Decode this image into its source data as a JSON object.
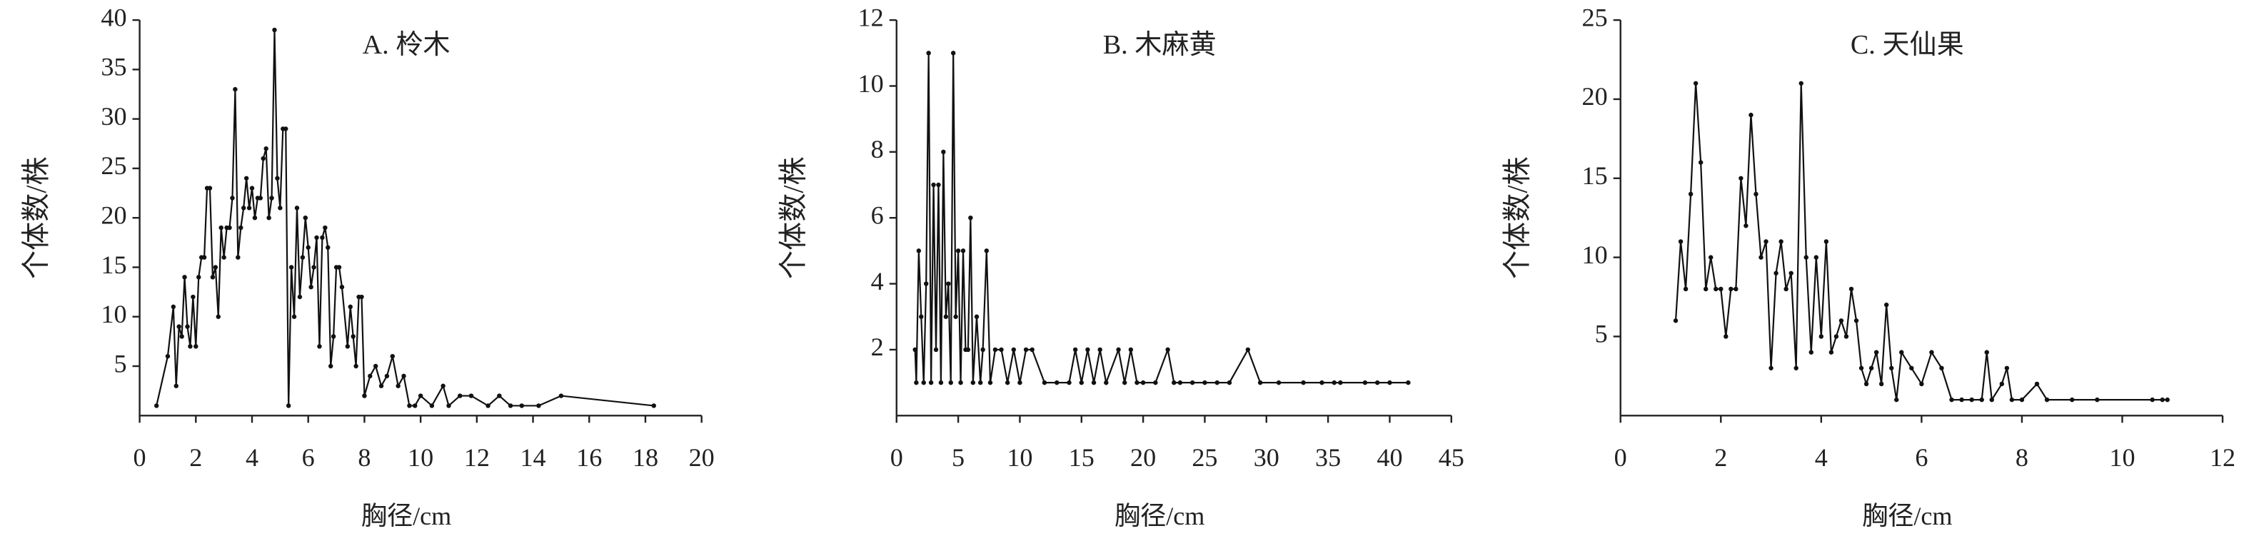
{
  "chart_data": [
    {
      "type": "line",
      "title": "A. 柃木",
      "x_label": "胸径/cm",
      "y_label": "个体数/株",
      "color": "#111111",
      "xlim": [
        0,
        20
      ],
      "ylim": [
        0,
        40
      ],
      "xticks": [
        0,
        2,
        4,
        6,
        8,
        10,
        12,
        14,
        16,
        18,
        20
      ],
      "yticks": [
        5,
        10,
        15,
        20,
        25,
        30,
        35,
        40
      ],
      "x": [
        0.6,
        1.0,
        1.2,
        1.3,
        1.4,
        1.5,
        1.6,
        1.7,
        1.8,
        1.9,
        2.0,
        2.1,
        2.2,
        2.3,
        2.4,
        2.5,
        2.6,
        2.7,
        2.8,
        2.9,
        3.0,
        3.1,
        3.2,
        3.3,
        3.4,
        3.5,
        3.6,
        3.7,
        3.8,
        3.9,
        4.0,
        4.1,
        4.2,
        4.3,
        4.4,
        4.5,
        4.6,
        4.7,
        4.8,
        4.9,
        5.0,
        5.1,
        5.2,
        5.3,
        5.4,
        5.5,
        5.6,
        5.7,
        5.8,
        5.9,
        6.0,
        6.1,
        6.2,
        6.3,
        6.4,
        6.5,
        6.6,
        6.7,
        6.8,
        6.9,
        7.0,
        7.1,
        7.2,
        7.4,
        7.5,
        7.6,
        7.7,
        7.8,
        7.9,
        8.0,
        8.2,
        8.4,
        8.6,
        8.8,
        9.0,
        9.2,
        9.4,
        9.6,
        9.8,
        10.0,
        10.4,
        10.8,
        11.0,
        11.4,
        11.8,
        12.4,
        12.8,
        13.2,
        13.6,
        14.2,
        15.0,
        18.3
      ],
      "values": [
        1,
        6,
        11,
        3,
        9,
        8,
        14,
        9,
        7,
        12,
        7,
        14,
        16,
        16,
        23,
        23,
        14,
        15,
        10,
        19,
        16,
        19,
        19,
        22,
        33,
        16,
        19,
        21,
        24,
        21,
        23,
        20,
        22,
        22,
        26,
        27,
        20,
        22,
        39,
        24,
        21,
        29,
        29,
        1,
        15,
        10,
        21,
        12,
        16,
        20,
        17,
        13,
        15,
        18,
        7,
        18,
        19,
        17,
        5,
        8,
        15,
        15,
        13,
        7,
        11,
        8,
        5,
        12,
        12,
        2,
        4,
        5,
        3,
        4,
        6,
        3,
        4,
        1,
        1,
        2,
        1,
        3,
        1,
        2,
        2,
        1,
        2,
        1,
        1,
        1,
        2,
        1
      ]
    },
    {
      "type": "line",
      "title": "B. 木麻黄",
      "x_label": "胸径/cm",
      "y_label": "个体数/株",
      "color": "#111111",
      "xlim": [
        0,
        45
      ],
      "ylim": [
        0,
        12
      ],
      "xticks": [
        0,
        5,
        10,
        15,
        20,
        25,
        30,
        35,
        40,
        45
      ],
      "yticks": [
        2,
        4,
        6,
        8,
        10,
        12
      ],
      "x": [
        1.5,
        1.6,
        1.8,
        2.0,
        2.2,
        2.4,
        2.6,
        2.8,
        3.0,
        3.2,
        3.4,
        3.6,
        3.8,
        4.0,
        4.2,
        4.4,
        4.6,
        4.8,
        5.0,
        5.2,
        5.4,
        5.6,
        5.8,
        6.0,
        6.2,
        6.5,
        6.8,
        7.0,
        7.3,
        7.6,
        8.0,
        8.5,
        9.0,
        9.5,
        10.0,
        10.5,
        11.0,
        12.0,
        13.0,
        14.0,
        14.5,
        15.0,
        15.5,
        16.0,
        16.5,
        17.0,
        18.0,
        18.5,
        19.0,
        19.5,
        20.0,
        21.0,
        22.0,
        22.5,
        23.0,
        24,
        25,
        26,
        27,
        28.5,
        29.5,
        31,
        33,
        34.5,
        35.5,
        36,
        38,
        39,
        40,
        41.5
      ],
      "values": [
        2,
        1,
        5,
        3,
        1,
        4,
        11,
        1,
        7,
        2,
        7,
        1,
        8,
        3,
        4,
        1,
        11,
        3,
        5,
        1,
        5,
        2,
        2,
        6,
        1,
        3,
        1,
        2,
        5,
        1,
        2,
        2,
        1,
        2,
        1,
        2,
        2,
        1,
        1,
        1,
        2,
        1,
        2,
        1,
        2,
        1,
        2,
        1,
        2,
        1,
        1,
        1,
        2,
        1,
        1,
        1,
        1,
        1,
        1,
        2,
        1,
        1,
        1,
        1,
        1,
        1,
        1,
        1,
        1,
        1
      ]
    },
    {
      "type": "line",
      "title": "C. 天仙果",
      "x_label": "胸径/cm",
      "y_label": "个体数/株",
      "color": "#111111",
      "xlim": [
        0,
        12
      ],
      "ylim": [
        0,
        25
      ],
      "xticks": [
        0,
        2,
        4,
        6,
        8,
        10,
        12
      ],
      "yticks": [
        5,
        10,
        15,
        20,
        25
      ],
      "x": [
        1.1,
        1.2,
        1.3,
        1.4,
        1.5,
        1.6,
        1.7,
        1.8,
        1.9,
        2.0,
        2.1,
        2.2,
        2.3,
        2.4,
        2.5,
        2.6,
        2.7,
        2.8,
        2.9,
        3.0,
        3.1,
        3.2,
        3.3,
        3.4,
        3.5,
        3.6,
        3.7,
        3.8,
        3.9,
        4.0,
        4.1,
        4.2,
        4.3,
        4.4,
        4.5,
        4.6,
        4.7,
        4.8,
        4.9,
        5.0,
        5.1,
        5.2,
        5.3,
        5.4,
        5.5,
        5.6,
        5.8,
        6.0,
        6.2,
        6.4,
        6.6,
        6.8,
        7.0,
        7.2,
        7.3,
        7.4,
        7.6,
        7.7,
        7.8,
        8.0,
        8.3,
        8.5,
        9.0,
        9.5,
        10.6,
        10.8,
        10.9
      ],
      "values": [
        6,
        11,
        8,
        14,
        21,
        16,
        8,
        10,
        8,
        8,
        5,
        8,
        8,
        15,
        12,
        19,
        14,
        10,
        11,
        3,
        9,
        11,
        8,
        9,
        3,
        21,
        10,
        4,
        10,
        5,
        11,
        4,
        5,
        6,
        5,
        8,
        6,
        3,
        2,
        3,
        4,
        2,
        7,
        3,
        1,
        4,
        3,
        2,
        4,
        3,
        1,
        1,
        1,
        1,
        4,
        1,
        2,
        3,
        1,
        1,
        2,
        1,
        1,
        1,
        1,
        1,
        1
      ]
    }
  ]
}
